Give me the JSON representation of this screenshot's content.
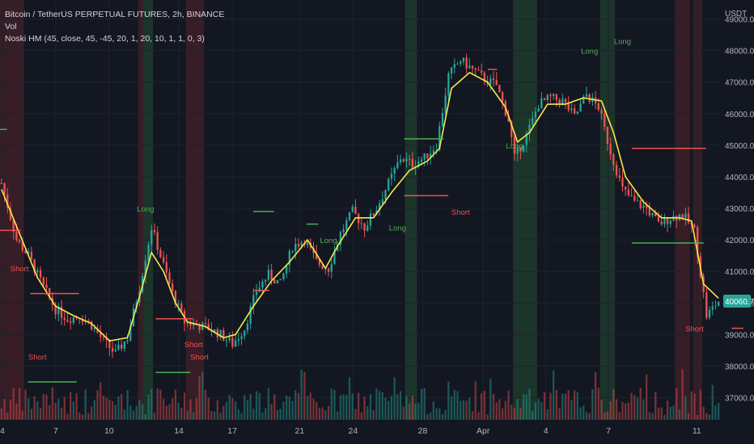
{
  "header": {
    "symbol_line": "Bitcoin / TetherUS PERPETUAL FUTURES, 2h, BINANCE",
    "vol_label": "Vol",
    "indicator_label": "Noski HM (45, close, 45, -45, 20, 1, 20, 10, 1, 1, 0, 3)",
    "currency": "USDT"
  },
  "colors": {
    "background": "#131722",
    "grid": "#1e222d",
    "bull": "#26a69a",
    "bear": "#ef5350",
    "ma_line": "#f5e84a",
    "long_zone": "#1f3b2d",
    "short_zone": "#3d1f27",
    "long_text": "#4caf50",
    "short_text": "#ef5350",
    "last_price_bg": "#26a69a"
  },
  "chart_data": {
    "type": "candlestick",
    "title": "Bitcoin / TetherUS PERPETUAL FUTURES, 2h, BINANCE",
    "x_tick_labels": [
      "4",
      "7",
      "10",
      "14",
      "17",
      "21",
      "24",
      "28",
      "Apr",
      "4",
      "7",
      "11"
    ],
    "y_ticks": [
      37000,
      38000,
      39000,
      40000,
      41000,
      42000,
      43000,
      44000,
      45000,
      46000,
      47000,
      48000,
      49000
    ],
    "y_tick_labels": [
      "37000.0",
      "38000.0",
      "39000.0",
      "40000.0",
      "41000.0",
      "42000.0",
      "43000.0",
      "44000.0",
      "45000.0",
      "46000.0",
      "47000.0",
      "48000.0",
      "49000.0"
    ],
    "ylim": [
      36300,
      49600
    ],
    "last_price": 40060.7,
    "last_price_label": "40060.7",
    "price_path": [
      [
        0,
        43800
      ],
      [
        5,
        42000
      ],
      [
        9,
        41500
      ],
      [
        14,
        40500
      ],
      [
        18,
        39800
      ],
      [
        22,
        39500
      ],
      [
        26,
        39600
      ],
      [
        30,
        39300
      ],
      [
        34,
        38800
      ],
      [
        38,
        38400
      ],
      [
        42,
        38900
      ],
      [
        46,
        40500
      ],
      [
        50,
        42400
      ],
      [
        53,
        41500
      ],
      [
        57,
        40300
      ],
      [
        61,
        39400
      ],
      [
        65,
        39300
      ],
      [
        69,
        39200
      ],
      [
        73,
        39000
      ],
      [
        77,
        38700
      ],
      [
        81,
        39200
      ],
      [
        85,
        40400
      ],
      [
        89,
        40900
      ],
      [
        93,
        40600
      ],
      [
        97,
        41800
      ],
      [
        101,
        42000
      ],
      [
        105,
        41300
      ],
      [
        109,
        41100
      ],
      [
        113,
        42200
      ],
      [
        117,
        42900
      ],
      [
        121,
        42400
      ],
      [
        125,
        43000
      ],
      [
        129,
        43800
      ],
      [
        133,
        44600
      ],
      [
        137,
        44400
      ],
      [
        141,
        44600
      ],
      [
        145,
        45000
      ],
      [
        149,
        47200
      ],
      [
        153,
        47700
      ],
      [
        157,
        47400
      ],
      [
        161,
        47100
      ],
      [
        165,
        46900
      ],
      [
        169,
        45800
      ],
      [
        171,
        44600
      ],
      [
        175,
        45300
      ],
      [
        179,
        46300
      ],
      [
        183,
        46500
      ],
      [
        187,
        46400
      ],
      [
        191,
        45900
      ],
      [
        195,
        46600
      ],
      [
        199,
        46200
      ],
      [
        203,
        44800
      ],
      [
        207,
        43600
      ],
      [
        211,
        43200
      ],
      [
        215,
        43000
      ],
      [
        219,
        42500
      ],
      [
        223,
        42700
      ],
      [
        227,
        42800
      ],
      [
        231,
        42300
      ],
      [
        235,
        39600
      ],
      [
        239,
        40060
      ]
    ],
    "ma_path": [
      [
        0,
        43600
      ],
      [
        6,
        42200
      ],
      [
        12,
        40800
      ],
      [
        18,
        39900
      ],
      [
        24,
        39600
      ],
      [
        30,
        39350
      ],
      [
        36,
        38800
      ],
      [
        42,
        38900
      ],
      [
        46,
        40200
      ],
      [
        50,
        41600
      ],
      [
        54,
        41000
      ],
      [
        58,
        40000
      ],
      [
        62,
        39400
      ],
      [
        68,
        39250
      ],
      [
        74,
        38900
      ],
      [
        78,
        39000
      ],
      [
        84,
        39900
      ],
      [
        90,
        40700
      ],
      [
        96,
        41300
      ],
      [
        102,
        42000
      ],
      [
        108,
        41100
      ],
      [
        112,
        41800
      ],
      [
        118,
        42700
      ],
      [
        124,
        42700
      ],
      [
        130,
        43500
      ],
      [
        136,
        44200
      ],
      [
        142,
        44500
      ],
      [
        146,
        44900
      ],
      [
        150,
        46800
      ],
      [
        156,
        47300
      ],
      [
        162,
        47000
      ],
      [
        168,
        46200
      ],
      [
        172,
        45100
      ],
      [
        176,
        45400
      ],
      [
        182,
        46300
      ],
      [
        188,
        46300
      ],
      [
        194,
        46500
      ],
      [
        200,
        46400
      ],
      [
        204,
        45400
      ],
      [
        208,
        44000
      ],
      [
        214,
        43200
      ],
      [
        220,
        42700
      ],
      [
        226,
        42700
      ],
      [
        230,
        42600
      ],
      [
        234,
        40600
      ],
      [
        239,
        40150
      ]
    ],
    "long_zones": [
      [
        47,
        50
      ],
      [
        135,
        138
      ],
      [
        171,
        178
      ],
      [
        200,
        204
      ]
    ],
    "short_zones": [
      [
        0,
        7
      ],
      [
        46,
        47
      ],
      [
        62,
        67
      ],
      [
        225,
        229
      ],
      [
        231,
        233
      ]
    ],
    "signals": [
      {
        "label": "Long",
        "type": "long",
        "x": 48,
        "y": 42900
      },
      {
        "label": "Long",
        "type": "long",
        "x": 109,
        "y": 41900
      },
      {
        "label": "Long",
        "type": "long",
        "x": 132,
        "y": 42300
      },
      {
        "label": "Long",
        "type": "long",
        "x": 171,
        "y": 44900
      },
      {
        "label": "Long",
        "type": "long",
        "x": 196,
        "y": 47900
      },
      {
        "label": "Long",
        "type": "long",
        "x": 207,
        "y": 48200
      },
      {
        "label": "Short",
        "type": "short",
        "x": 6,
        "y": 41000
      },
      {
        "label": "Short",
        "type": "short",
        "x": 12,
        "y": 38200
      },
      {
        "label": "Short",
        "type": "short",
        "x": 64,
        "y": 38600
      },
      {
        "label": "Short",
        "type": "short",
        "x": 66,
        "y": 38200
      },
      {
        "label": "Short",
        "type": "short",
        "x": 153,
        "y": 42800
      },
      {
        "label": "Short",
        "type": "short",
        "x": 231,
        "y": 39100
      }
    ],
    "levels": [
      {
        "type": "long",
        "x1": 0,
        "x2": 3,
        "y": 45500
      },
      {
        "type": "long",
        "x1": 12,
        "x2": 33,
        "y": 37500
      },
      {
        "type": "long",
        "x1": 67,
        "x2": 82,
        "y": 37800
      },
      {
        "type": "long",
        "x1": 109,
        "x2": 118,
        "y": 42900
      },
      {
        "type": "long",
        "x1": 132,
        "x2": 137,
        "y": 42500
      },
      {
        "type": "long",
        "x1": 174,
        "x2": 191,
        "y": 45200
      },
      {
        "type": "long",
        "x1": 272,
        "x2": 303,
        "y": 41900
      },
      {
        "type": "short",
        "x1": 0,
        "x2": 9,
        "y": 42300
      },
      {
        "type": "short",
        "x1": 13,
        "x2": 34,
        "y": 40300
      },
      {
        "type": "short",
        "x1": 67,
        "x2": 83,
        "y": 39500
      },
      {
        "type": "short",
        "x1": 109,
        "x2": 116,
        "y": 40400
      },
      {
        "type": "short",
        "x1": 174,
        "x2": 193,
        "y": 43400
      },
      {
        "type": "short",
        "x1": 210,
        "x2": 214,
        "y": 47400
      },
      {
        "type": "short",
        "x1": 272,
        "x2": 304,
        "y": 44900
      },
      {
        "type": "short",
        "x1": 315,
        "x2": 320,
        "y": 39200
      }
    ]
  }
}
